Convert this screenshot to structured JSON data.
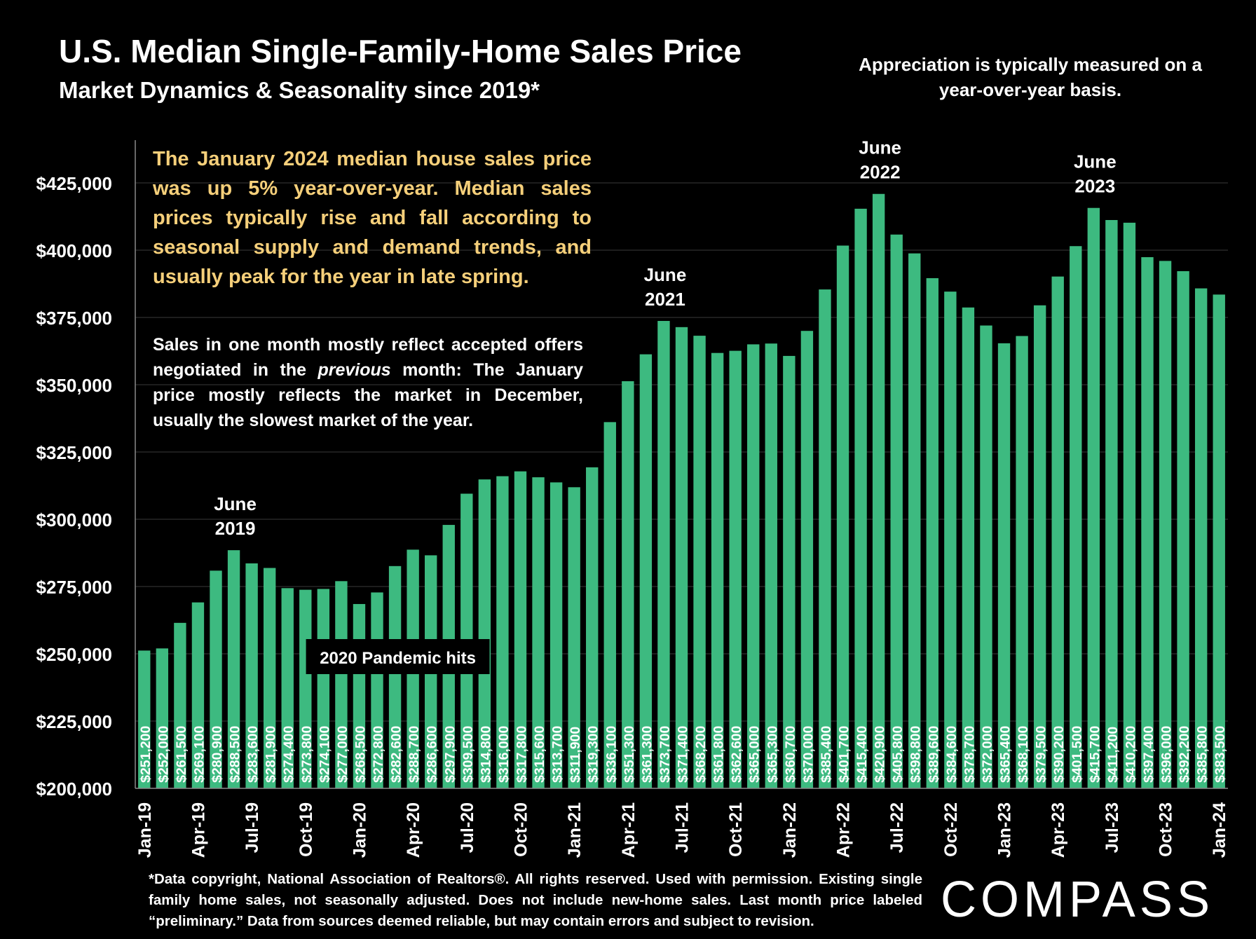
{
  "header": {
    "title": "U.S. Median Single-Family-Home Sales Price",
    "subtitle": "Market Dynamics & Seasonality since 2019*",
    "top_note": "Appreciation is typically measured on a year-over-year basis."
  },
  "callout": "The January 2024 median house sales price was up 5% year-over-year. Median sales prices typically rise and fall according to seasonal supply and demand trends, and usually peak for the year in late spring.",
  "note2": {
    "part1": "Sales in one month mostly reflect accepted offers negotiated in the ",
    "italic": "previous",
    "part2": " month: The January price mostly reflects the market in December, usually the slowest market of the year."
  },
  "footnote": "*Data copyright, National Association of Realtors®. All rights reserved. Used with permission. Existing single family home sales, not seasonally adjusted. Does not include new-home sales. Last month price labeled “preliminary.” Data from sources deemed reliable, but may contain errors and subject to revision.",
  "logo_text": "COMPASS",
  "colors": {
    "bar": "#3dba80",
    "background": "#000000",
    "callout": "#f5cf7a",
    "text": "#ffffff"
  },
  "chart_data": {
    "type": "bar",
    "categories": [
      "Jan-19",
      "Feb-19",
      "Mar-19",
      "Apr-19",
      "May-19",
      "Jun-19",
      "Jul-19",
      "Aug-19",
      "Sep-19",
      "Oct-19",
      "Nov-19",
      "Dec-19",
      "Jan-20",
      "Feb-20",
      "Mar-20",
      "Apr-20",
      "May-20",
      "Jun-20",
      "Jul-20",
      "Aug-20",
      "Sep-20",
      "Oct-20",
      "Nov-20",
      "Dec-20",
      "Jan-21",
      "Feb-21",
      "Mar-21",
      "Apr-21",
      "May-21",
      "Jun-21",
      "Jul-21",
      "Aug-21",
      "Sep-21",
      "Oct-21",
      "Nov-21",
      "Dec-21",
      "Jan-22",
      "Feb-22",
      "Mar-22",
      "Apr-22",
      "May-22",
      "Jun-22",
      "Jul-22",
      "Aug-22",
      "Sep-22",
      "Oct-22",
      "Nov-22",
      "Dec-22",
      "Jan-23",
      "Feb-23",
      "Mar-23",
      "Apr-23",
      "May-23",
      "Jun-23",
      "Jul-23",
      "Aug-23",
      "Sep-23",
      "Oct-23",
      "Nov-23",
      "Dec-23",
      "Jan-24"
    ],
    "values": [
      251200,
      252000,
      261500,
      269100,
      280900,
      288500,
      283600,
      281900,
      274400,
      273800,
      274100,
      277000,
      268500,
      272800,
      282600,
      288700,
      286600,
      297900,
      309500,
      314800,
      316000,
      317800,
      315600,
      313700,
      311900,
      319300,
      336100,
      351300,
      361300,
      373700,
      371400,
      368200,
      361800,
      362600,
      365000,
      365300,
      360700,
      370000,
      385400,
      401700,
      415400,
      420900,
      405800,
      398800,
      389600,
      384600,
      378700,
      372000,
      365400,
      368100,
      379500,
      390200,
      401500,
      415700,
      411200,
      410200,
      397400,
      396000,
      392200,
      385800,
      383500
    ],
    "value_labels": [
      "$251,200",
      "$252,000",
      "$261,500",
      "$269,100",
      "$280,900",
      "$288,500",
      "$283,600",
      "$281,900",
      "$274,400",
      "$273,800",
      "$274,100",
      "$277,000",
      "$268,500",
      "$272,800",
      "$282,600",
      "$288,700",
      "$286,600",
      "$297,900",
      "$309,500",
      "$314,800",
      "$316,000",
      "$317,800",
      "$315,600",
      "$313,700",
      "$311,900",
      "$319,300",
      "$336,100",
      "$351,300",
      "$361,300",
      "$373,700",
      "$371,400",
      "$368,200",
      "$361,800",
      "$362,600",
      "$365,000",
      "$365,300",
      "$360,700",
      "$370,000",
      "$385,400",
      "$401,700",
      "$415,400",
      "$420,900",
      "$405,800",
      "$398,800",
      "$389,600",
      "$384,600",
      "$378,700",
      "$372,000",
      "$365,400",
      "$368,100",
      "$379,500",
      "$390,200",
      "$401,500",
      "$415,700",
      "$411,200",
      "$410,200",
      "$397,400",
      "$396,000",
      "$392,200",
      "$385,800",
      "$383,500"
    ],
    "x_tick_labels": [
      {
        "index": 0,
        "label": "Jan-19"
      },
      {
        "index": 3,
        "label": "Apr-19"
      },
      {
        "index": 6,
        "label": "Jul-19"
      },
      {
        "index": 9,
        "label": "Oct-19"
      },
      {
        "index": 12,
        "label": "Jan-20"
      },
      {
        "index": 15,
        "label": "Apr-20"
      },
      {
        "index": 18,
        "label": "Jul-20"
      },
      {
        "index": 21,
        "label": "Oct-20"
      },
      {
        "index": 24,
        "label": "Jan-21"
      },
      {
        "index": 27,
        "label": "Apr-21"
      },
      {
        "index": 30,
        "label": "Jul-21"
      },
      {
        "index": 33,
        "label": "Oct-21"
      },
      {
        "index": 36,
        "label": "Jan-22"
      },
      {
        "index": 39,
        "label": "Apr-22"
      },
      {
        "index": 42,
        "label": "Jul-22"
      },
      {
        "index": 45,
        "label": "Oct-22"
      },
      {
        "index": 48,
        "label": "Jan-23"
      },
      {
        "index": 51,
        "label": "Apr-23"
      },
      {
        "index": 54,
        "label": "Jul-23"
      },
      {
        "index": 57,
        "label": "Oct-23"
      },
      {
        "index": 60,
        "label": "Jan-24"
      }
    ],
    "y_ticks": [
      200000,
      225000,
      250000,
      275000,
      300000,
      325000,
      350000,
      375000,
      400000,
      425000
    ],
    "y_tick_labels": [
      "$200,000",
      "$225,000",
      "$250,000",
      "$275,000",
      "$300,000",
      "$325,000",
      "$350,000",
      "$375,000",
      "$400,000",
      "$425,000"
    ],
    "ylim": [
      200000,
      440000
    ],
    "grid": true,
    "annotations": [
      {
        "index": 5,
        "lines": [
          "June",
          "2019"
        ]
      },
      {
        "index": 29,
        "lines": [
          "June",
          "2021"
        ]
      },
      {
        "index": 41,
        "lines": [
          "June",
          "2022"
        ]
      },
      {
        "index": 53,
        "lines": [
          "June",
          "2023"
        ]
      }
    ],
    "event_label": {
      "text": "2020 Pandemic hits",
      "index": 14
    }
  }
}
